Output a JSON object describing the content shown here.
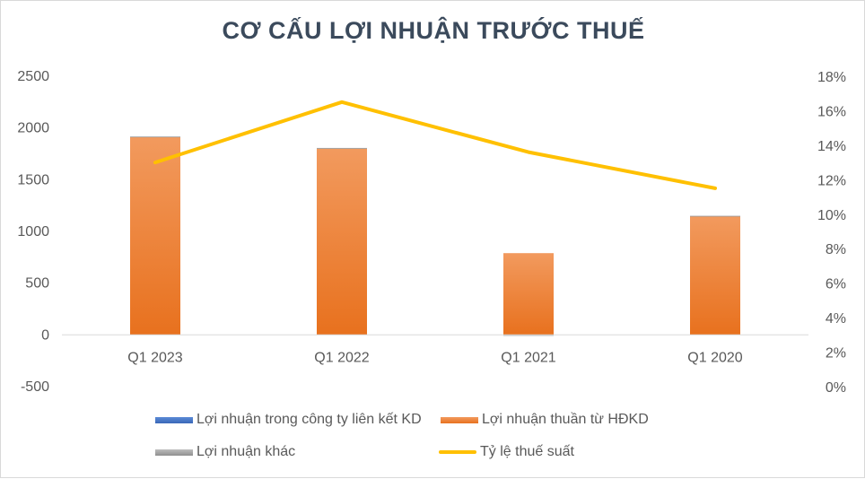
{
  "chart_data": {
    "type": "bar",
    "title": "CƠ CẤU LỢI NHUẬN TRƯỚC THUẾ",
    "categories": [
      "Q1 2023",
      "Q1 2022",
      "Q1 2021",
      "Q1 2020"
    ],
    "series": [
      {
        "name": "Lợi nhuận trong công ty liên kết KD",
        "type": "bar",
        "axis": "left",
        "values": [
          0,
          0,
          0,
          0
        ],
        "color": "#4472c4"
      },
      {
        "name": "Lợi nhuận thuần từ HĐKD",
        "type": "bar",
        "axis": "left",
        "values": [
          1915,
          1805,
          790,
          1150
        ],
        "color": "#ed7d31"
      },
      {
        "name": "Lợi nhuận khác",
        "type": "bar",
        "axis": "left",
        "values": [
          3,
          2,
          -8,
          2
        ],
        "color": "#a5a5a5"
      },
      {
        "name": "Tỷ lệ thuế suất",
        "type": "line",
        "axis": "right",
        "values": [
          13.0,
          16.5,
          13.6,
          11.5
        ],
        "color": "#ffc000"
      }
    ],
    "y_left": {
      "ylim": [
        -500,
        2500
      ],
      "ticks": [
        "2500",
        "2000",
        "1500",
        "1000",
        "500",
        "0",
        "-500"
      ]
    },
    "y_right": {
      "ylim": [
        0,
        18
      ],
      "ticks": [
        "18%",
        "16%",
        "14%",
        "12%",
        "10%",
        "8%",
        "6%",
        "4%",
        "2%",
        "0%"
      ]
    },
    "grid": false,
    "legend": "bottom"
  }
}
